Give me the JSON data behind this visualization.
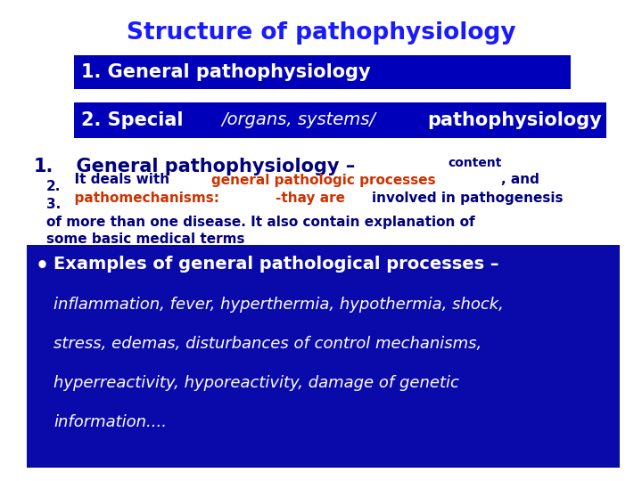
{
  "title": "Structure of pathophysiology",
  "title_color": "#1a1aff",
  "bg_color": "#ffffff",
  "box1_text": "1. General pathophysiology",
  "box_bg_color": "#0000bb",
  "box_text_color": "#ffffff",
  "heading_text": "1.  General pathophysiology – content",
  "heading_color": "#000080",
  "item2_normal_color": "#000080",
  "item2_orange_color": "#cc3300",
  "bullet_box_bg": "#0a0aaa",
  "bullet_text_white": "#ffffff",
  "bullet_line1": "Examples of general pathological processes –",
  "bullet_line2": "inflammation, fever, hyperthermia, hypothermia, shock,",
  "bullet_line3": "stress, edemas, disturbances of control mechanisms,",
  "bullet_line4": "hyperreactivity, hyporeactivity, damage of genetic",
  "bullet_line5": "information....",
  "item3_line2": "of more than one disease. It also contain explanation of",
  "item3_line3": "some basic medical terms"
}
